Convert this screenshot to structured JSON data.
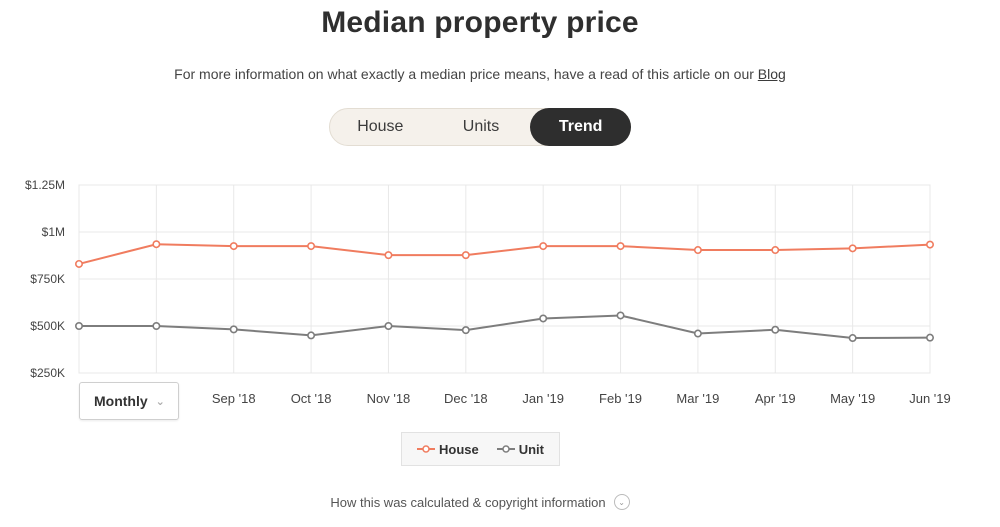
{
  "header": {
    "title": "Median property price",
    "subtitle": "For more information on what exactly a median price means, have a read of this article on our",
    "blog_link": "Blog"
  },
  "toggle": {
    "options": [
      "House",
      "Units",
      "Trend"
    ],
    "active": "Trend"
  },
  "period_select": {
    "value": "Monthly"
  },
  "footer": {
    "text": "How this was calculated & copyright information"
  },
  "colors": {
    "house": "#f07c5f",
    "unit": "#7d7d7d",
    "grid": "#e8e8e8"
  },
  "chart_data": {
    "type": "line",
    "categories": [
      "",
      "",
      "Sep '18",
      "Oct '18",
      "Nov '18",
      "Dec '18",
      "Jan '19",
      "Feb '19",
      "Mar '19",
      "Apr '19",
      "May '19",
      "Jun '19"
    ],
    "series": [
      {
        "name": "House",
        "values": [
          830000,
          935000,
          925000,
          925000,
          877000,
          877000,
          925000,
          925000,
          904000,
          904000,
          913000,
          933000
        ]
      },
      {
        "name": "Unit",
        "values": [
          500000,
          500000,
          482000,
          450000,
          500000,
          478000,
          540000,
          556000,
          460000,
          480000,
          436000,
          438000
        ]
      }
    ],
    "ylim": [
      250000,
      1250000
    ],
    "yticks": [
      250000,
      500000,
      750000,
      1000000,
      1250000
    ],
    "ytick_labels": [
      "$250K",
      "$500K",
      "$750K",
      "$1M",
      "$1.25M"
    ],
    "grid": true,
    "legend": "bottom-center"
  }
}
